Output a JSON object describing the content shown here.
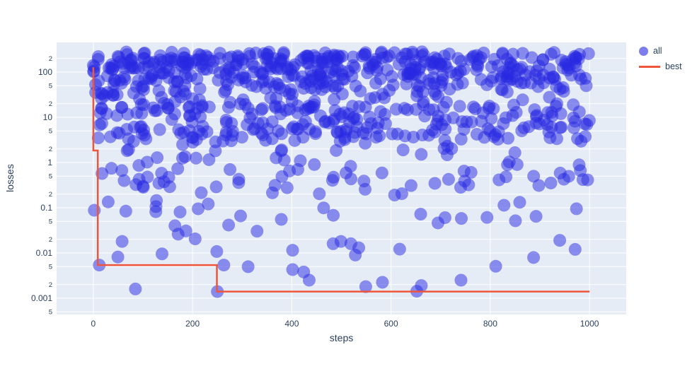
{
  "chart_data": {
    "type": "scatter",
    "title": "",
    "xlabel": "steps",
    "ylabel": "losses",
    "grid": true,
    "legend_position": "right-top",
    "x_axis": {
      "ticks": [
        0,
        200,
        400,
        600,
        800,
        1000
      ],
      "tick_labels": [
        "0",
        "200",
        "400",
        "600",
        "800",
        "1000"
      ],
      "range": [
        -74,
        1074
      ]
    },
    "y_axis": {
      "scale": "log",
      "log10_range": [
        -3.36,
        2.656
      ],
      "major_ticks": [
        100,
        10,
        1,
        0.1,
        0.01,
        0.001
      ],
      "major_tick_labels": [
        "100",
        "10",
        "1",
        "0.1",
        "0.01",
        "0.001"
      ],
      "minor_ticks": [
        200,
        50,
        20,
        5,
        2,
        0.5,
        0.2,
        0.05,
        0.02,
        0.005,
        0.002,
        0.0005
      ],
      "minor_tick_labels": [
        "2",
        "5",
        "2",
        "5",
        "2",
        "5",
        "2",
        "5",
        "2",
        "5",
        "2",
        "5"
      ]
    },
    "series": [
      {
        "name": "all",
        "type": "markers",
        "color": "#2727e1",
        "opacity": 0.5,
        "marker_radius": 9,
        "n_points": 850,
        "x_range": [
          0,
          1000
        ],
        "generator": {
          "seed": 1337,
          "bands": [
            {
              "weight": 0.56,
              "log10_min": 1.3,
              "log10_max": 2.45,
              "pow": 0.6
            },
            {
              "weight": 0.28,
              "log10_min": 0.45,
              "log10_max": 1.3,
              "pow": 0.85
            },
            {
              "weight": 0.105,
              "log10_min": -0.55,
              "log10_max": 0.45,
              "pow": 1
            },
            {
              "weight": 0.04,
              "log10_min": -1.6,
              "log10_max": -0.55,
              "pow": 1
            },
            {
              "weight": 0.015,
              "log10_min": -2.87,
              "log10_max": -1.6,
              "pow": 1
            }
          ]
        },
        "visible_points": [
          [
            0,
            140
          ],
          [
            2,
            0.088
          ],
          [
            12,
            0.0054
          ],
          [
            58,
            0.018
          ],
          [
            250,
            0.0014
          ],
          [
            263,
            0.0054
          ],
          [
            424,
            0.0038
          ],
          [
            435,
            0.0025
          ],
          [
            499,
            0.018
          ],
          [
            519,
            0.016
          ],
          [
            528,
            0.009
          ],
          [
            535,
            0.013
          ],
          [
            549,
            0.0018
          ],
          [
            661,
            0.0019
          ],
          [
            741,
            0.0025
          ],
          [
            940,
            0.019
          ],
          [
            971,
            0.012
          ]
        ]
      },
      {
        "name": "best",
        "type": "line",
        "color": "#EF553B",
        "line_width": 2.5,
        "points": [
          [
            0,
            128
          ],
          [
            0,
            1.84
          ],
          [
            9,
            1.84
          ],
          [
            9,
            0.0054
          ],
          [
            249,
            0.0054
          ],
          [
            249,
            0.0014
          ],
          [
            1000,
            0.0014
          ]
        ]
      }
    ],
    "colors": {
      "paper_bg": "#ffffff",
      "plot_bg": "#e5ecf6",
      "grid": "#ffffff",
      "tick_text": "#2a3f5f",
      "axis_title_text": "#2a3f5f",
      "legend_text": "#2a3f5f"
    }
  }
}
